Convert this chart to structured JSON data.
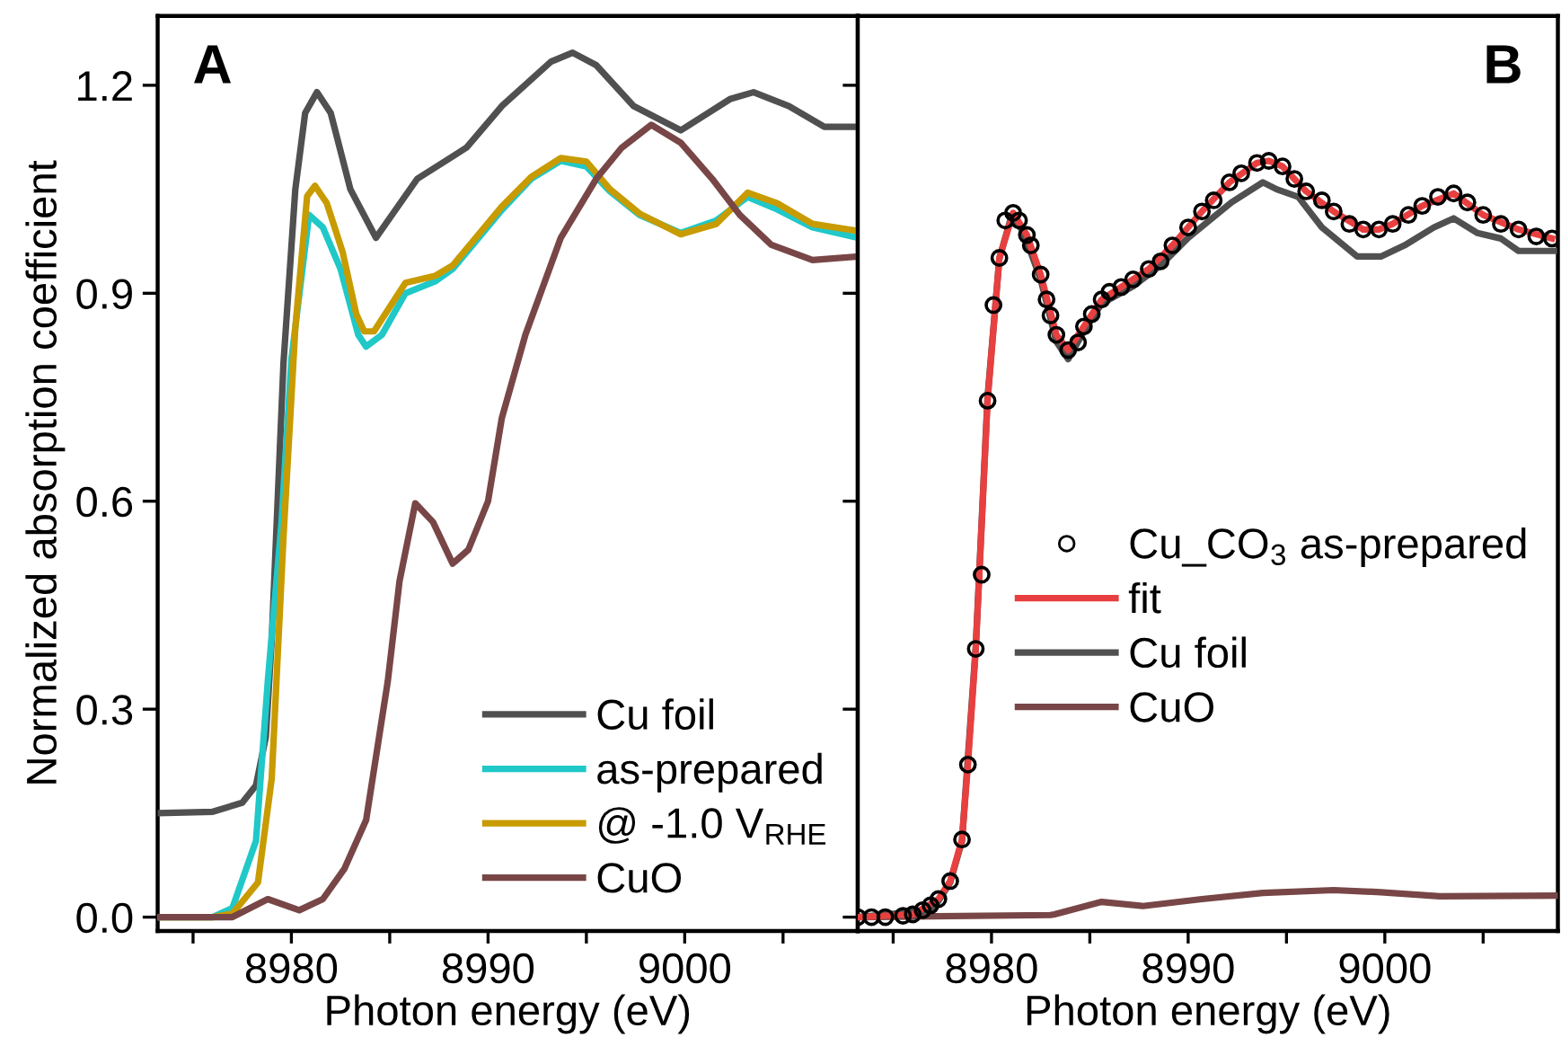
{
  "chart_data": [
    {
      "type": "line",
      "xlabel": "Photon energy (eV)",
      "ylabel": "Normalized absorption coefficient",
      "annotations": [
        "A"
      ],
      "xlim": [
        8973.2,
        9008.8
      ],
      "ylim": [
        -0.02,
        1.3
      ],
      "xticks": [
        {
          "value": 8975,
          "label": null
        },
        8980,
        {
          "value": 8985,
          "label": null
        },
        8990,
        {
          "value": 8995,
          "label": null
        },
        9000,
        {
          "value": 9005,
          "label": null
        }
      ],
      "yticks": [
        {
          "value": 0,
          "label": "0.0"
        },
        0.3,
        0.6,
        0.9,
        1.2
      ],
      "grid": false,
      "legend": "bottom right",
      "line_style": "solid",
      "marker": "none",
      "series": [
        {
          "name": "Cu foil",
          "color": "#505050",
          "x": [
            8973.2,
            8976,
            8977.5,
            8978.2,
            8978.7,
            8979,
            8979.6,
            8980.2,
            8980.7,
            8981.3,
            8982,
            8983,
            8984.3,
            8986.4,
            8988.9,
            8990.7,
            8993.2,
            8994.3,
            8995.5,
            8997.4,
            8999.8,
            9002.3,
            9003.5,
            9005.3,
            9007.1,
            9008.8
          ],
          "values": [
            0.15,
            0.152,
            0.165,
            0.19,
            0.26,
            0.4,
            0.8,
            1.05,
            1.16,
            1.19,
            1.16,
            1.05,
            0.98,
            1.065,
            1.11,
            1.17,
            1.234,
            1.247,
            1.229,
            1.17,
            1.135,
            1.18,
            1.19,
            1.17,
            1.14,
            1.14
          ]
        },
        {
          "name": "as-prepared",
          "color": "#20c8c8",
          "x": [
            8973.2,
            8976,
            8977,
            8978.2,
            8978.8,
            8979.5,
            8980,
            8980.9,
            8981.6,
            8982.5,
            8983.4,
            8983.8,
            8984.6,
            8985.8,
            8987.3,
            8988.2,
            8990.7,
            8992.2,
            8993.7,
            8995,
            8996.2,
            8997.7,
            8999.8,
            9001.6,
            9003.2,
            9004.7,
            9006.5,
            9008.8
          ],
          "values": [
            0,
            0,
            0.013,
            0.11,
            0.34,
            0.57,
            0.805,
            1.013,
            0.995,
            0.935,
            0.84,
            0.823,
            0.84,
            0.9,
            0.917,
            0.935,
            1.02,
            1.065,
            1.091,
            1.083,
            1.047,
            1.013,
            0.987,
            1.005,
            1.039,
            1.021,
            0.995,
            0.98
          ]
        },
        {
          "name": "@ -1.0 V$_{RHE}$",
          "color": "#c89b00",
          "x": [
            8973.2,
            8976,
            8977,
            8978.3,
            8979,
            8979.6,
            8980.2,
            8980.8,
            8981.2,
            8981.8,
            8982.6,
            8983.3,
            8983.7,
            8984.2,
            8985,
            8985.8,
            8987.3,
            8988.2,
            8990.7,
            8992.2,
            8993.7,
            8995,
            8996.2,
            8997.7,
            8999.8,
            9001.6,
            9003.2,
            9004.7,
            9006.5,
            9008.8
          ],
          "values": [
            0,
            0,
            0.005,
            0.05,
            0.2,
            0.55,
            0.85,
            1.04,
            1.055,
            1.03,
            0.96,
            0.87,
            0.845,
            0.845,
            0.88,
            0.915,
            0.925,
            0.94,
            1.025,
            1.068,
            1.095,
            1.09,
            1.05,
            1.015,
            0.985,
            1.0,
            1.045,
            1.03,
            1.0,
            0.99
          ]
        },
        {
          "name": "CuO",
          "color": "#784646",
          "x": [
            8973.2,
            8977,
            8978.8,
            8980.4,
            8981.6,
            8982.7,
            8983.8,
            8984.9,
            8985.5,
            8986.3,
            8987.2,
            8988.2,
            8989,
            8990,
            8990.7,
            8991.9,
            8993.7,
            8995.5,
            8996.8,
            8998.3,
            8999.8,
            9001.4,
            9002.8,
            9004.4,
            9006.5,
            9008.8
          ],
          "values": [
            0,
            0,
            0.026,
            0.01,
            0.026,
            0.07,
            0.14,
            0.34,
            0.485,
            0.597,
            0.57,
            0.51,
            0.53,
            0.6,
            0.72,
            0.84,
            0.98,
            1.065,
            1.11,
            1.143,
            1.117,
            1.065,
            1.013,
            0.97,
            0.948,
            0.953
          ]
        }
      ]
    },
    {
      "type": "line",
      "xlabel": "Photon energy (eV)",
      "annotations": [
        "B"
      ],
      "xlim": [
        8973.2,
        9008.8
      ],
      "ylim": [
        -0.02,
        1.3
      ],
      "xticks": [
        {
          "value": 8975,
          "label": null
        },
        8980,
        {
          "value": 8985,
          "label": null
        },
        8990,
        {
          "value": 8995,
          "label": null
        },
        9000,
        {
          "value": 9005,
          "label": null
        }
      ],
      "yticks": [
        {
          "value": 0,
          "label": null
        },
        {
          "value": 0.3,
          "label": null
        },
        {
          "value": 0.6,
          "label": null
        },
        {
          "value": 0.9,
          "label": null
        },
        {
          "value": 1.2,
          "label": null
        }
      ],
      "tick_labels": "x",
      "grid": false,
      "legend": "center right",
      "line_style": "solid",
      "series": [
        {
          "name": "Cu_CO$_{3}$ as-prepared",
          "type": "scatter",
          "marker": "circle",
          "color": "#000000",
          "x": [
            8973.2,
            8973.9,
            8974.6,
            8975.5,
            8976,
            8976.5,
            8976.9,
            8977.3,
            8977.9,
            8978.5,
            8978.8,
            8979.2,
            8979.5,
            8979.8,
            8980.1,
            8980.4,
            8980.7,
            8981.1,
            8981.4,
            8981.8,
            8982,
            8982.5,
            8982.8,
            8983,
            8983.3,
            8983.9,
            8984.4,
            8984.7,
            8985.1,
            8985.6,
            8986,
            8986.6,
            8987.2,
            8988,
            8988.6,
            8989.2,
            8990,
            8990.7,
            8991.3,
            8992.1,
            8992.7,
            8993.5,
            8994.1,
            8994.8,
            8995.4,
            8996,
            8996.8,
            8997.4,
            8998.2,
            8998.9,
            8999.7,
            9000.4,
            9001.2,
            9001.9,
            9002.7,
            9003.5,
            9004.2,
            9005,
            9005.9,
            9006.8,
            9007.7,
            9008.5
          ],
          "values": [
            0,
            0,
            0,
            0.002,
            0.004,
            0.01,
            0.017,
            0.026,
            0.052,
            0.112,
            0.22,
            0.387,
            0.494,
            0.745,
            0.883,
            0.951,
            1.005,
            1.016,
            1.005,
            0.984,
            0.969,
            0.927,
            0.891,
            0.868,
            0.84,
            0.818,
            0.829,
            0.852,
            0.87,
            0.891,
            0.902,
            0.909,
            0.92,
            0.935,
            0.946,
            0.969,
            0.995,
            1.018,
            1.034,
            1.06,
            1.073,
            1.088,
            1.091,
            1.083,
            1.065,
            1.047,
            1.034,
            1.018,
            1.0,
            0.992,
            0.992,
            1.0,
            1.013,
            1.026,
            1.039,
            1.044,
            1.031,
            1.013,
            1.0,
            0.992,
            0.982,
            0.979
          ]
        },
        {
          "name": "fit",
          "color": "#e84040",
          "x": [
            8973.2,
            8976,
            8977.3,
            8977.9,
            8978.5,
            8978.8,
            8979.2,
            8979.8,
            8980.4,
            8981.1,
            8981.8,
            8982.5,
            8983.3,
            8983.9,
            8984.7,
            8985.6,
            8986.6,
            8988,
            8989.2,
            8990.7,
            8992.1,
            8993.5,
            8994.1,
            8994.8,
            8996,
            8997.4,
            8998.9,
            8999.7,
            9000.4,
            9001.9,
            9003.5,
            9005,
            9006.8,
            9008.5
          ],
          "values": [
            0,
            0.004,
            0.026,
            0.052,
            0.112,
            0.22,
            0.387,
            0.745,
            0.951,
            1.016,
            0.984,
            0.927,
            0.84,
            0.818,
            0.852,
            0.891,
            0.909,
            0.935,
            0.969,
            1.018,
            1.06,
            1.088,
            1.091,
            1.083,
            1.047,
            1.018,
            0.992,
            0.992,
            1.0,
            1.026,
            1.044,
            1.013,
            0.992,
            0.979
          ]
        },
        {
          "name": "Cu foil",
          "color": "#505050",
          "x": [
            8973.2,
            8977,
            8977.9,
            8978.5,
            8979.2,
            8979.8,
            8980.4,
            8981,
            8981.6,
            8982.5,
            8983.3,
            8983.9,
            8984.7,
            8985.6,
            8987.2,
            8988.6,
            8990,
            8992.2,
            8993.8,
            8994.5,
            8995.6,
            8996.8,
            8998.6,
            8999.8,
            9001,
            9002.5,
            9003.5,
            9004.7,
            9005.9,
            9006.8,
            9008.6
          ],
          "values": [
            0,
            0.01,
            0.05,
            0.11,
            0.39,
            0.75,
            0.95,
            1.01,
            0.99,
            0.92,
            0.83,
            0.805,
            0.845,
            0.885,
            0.91,
            0.94,
            0.98,
            1.031,
            1.06,
            1.05,
            1.039,
            0.995,
            0.953,
            0.953,
            0.969,
            0.995,
            1.008,
            0.987,
            0.979,
            0.961,
            0.961
          ]
        },
        {
          "name": "CuO",
          "color": "#784646",
          "x": [
            8973.3,
            8983,
            8983.2,
            8985.6,
            8987.7,
            8990.7,
            8993.8,
            8997.4,
            8999.8,
            9002.8,
            9008.7
          ],
          "values": [
            0,
            0.003,
            0.004,
            0.022,
            0.016,
            0.026,
            0.035,
            0.039,
            0.036,
            0.03,
            0.031
          ]
        }
      ]
    }
  ]
}
